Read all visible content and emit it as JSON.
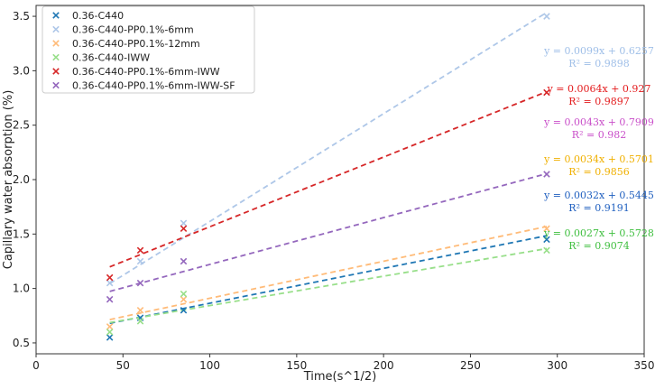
{
  "chart_data": {
    "type": "scatter",
    "title": "",
    "xlabel": "Time(s^1/2)",
    "ylabel": "Capillary water absorption (%)",
    "xlim": [
      0,
      350
    ],
    "ylim": [
      0.4,
      3.6
    ],
    "xticks": [
      0,
      50,
      100,
      150,
      200,
      250,
      300,
      350
    ],
    "yticks": [
      0.5,
      1.0,
      1.5,
      2.0,
      2.5,
      3.0,
      3.5
    ],
    "xtick_labels": [
      "0",
      "50",
      "100",
      "150",
      "200",
      "250",
      "300",
      "350"
    ],
    "ytick_labels": [
      "0.5",
      "1.0",
      "1.5",
      "2.0",
      "2.5",
      "3.0",
      "3.5"
    ],
    "grid": false,
    "legend_position": "top-left",
    "series": [
      {
        "name": "0.36-C440",
        "color": "#1f77b4",
        "x": [
          42.4,
          60.0,
          84.9,
          293.9
        ],
        "y": [
          0.55,
          0.73,
          0.8,
          1.45
        ],
        "trend": {
          "slope": 0.0032,
          "intercept": 0.5445,
          "x_range": [
            42.4,
            293.9
          ]
        },
        "equation": "y = 0.0032x + 0.5445",
        "r2": "R² = 0.9191",
        "eq_color": "#1f5fbf"
      },
      {
        "name": "0.36-C440-PP0.1%-6mm",
        "color": "#aec7e8",
        "x": [
          42.4,
          60.0,
          84.9,
          293.9
        ],
        "y": [
          1.05,
          1.25,
          1.6,
          3.5
        ],
        "trend": {
          "slope": 0.0099,
          "intercept": 0.6257,
          "x_range": [
            42.4,
            293.9
          ]
        },
        "equation": "y = 0.0099x + 0.6257",
        "r2": "R² = 0.9898",
        "eq_color": "#9fbfe8"
      },
      {
        "name": "0.36-C440-PP0.1%-12mm",
        "color": "#ffbb78",
        "x": [
          42.4,
          60.0,
          84.9,
          293.9
        ],
        "y": [
          0.65,
          0.8,
          0.9,
          1.55
        ],
        "trend": {
          "slope": 0.0034,
          "intercept": 0.5701,
          "x_range": [
            42.4,
            293.9
          ]
        },
        "equation": "y = 0.0034x + 0.5701",
        "r2": "R² = 0.9856",
        "eq_color": "#f0b000"
      },
      {
        "name": "0.36-C440-IWW",
        "color": "#98df8a",
        "x": [
          42.4,
          60.0,
          84.9,
          293.9
        ],
        "y": [
          0.6,
          0.7,
          0.95,
          1.35
        ],
        "trend": {
          "slope": 0.0027,
          "intercept": 0.5728,
          "x_range": [
            42.4,
            293.9
          ]
        },
        "equation": "y = 0.0027x + 0.5728",
        "r2": "R² = 0.9074",
        "eq_color": "#3fbf3f"
      },
      {
        "name": "0.36-C440-PP0.1%-6mm-IWW",
        "color": "#d62728",
        "x": [
          42.4,
          60.0,
          84.9,
          293.9
        ],
        "y": [
          1.1,
          1.35,
          1.55,
          2.8
        ],
        "trend": {
          "slope": 0.0064,
          "intercept": 0.927,
          "x_range": [
            42.4,
            293.9
          ]
        },
        "equation": "y = 0.0064x + 0.927",
        "r2": "R² = 0.9897",
        "eq_color": "#e31a1c"
      },
      {
        "name": "0.36-C440-PP0.1%-6mm-IWW-SF",
        "color": "#9467bd",
        "x": [
          42.4,
          60.0,
          84.9,
          293.9
        ],
        "y": [
          0.9,
          1.05,
          1.25,
          2.05
        ],
        "trend": {
          "slope": 0.0043,
          "intercept": 0.7909,
          "x_range": [
            42.4,
            293.9
          ]
        },
        "equation": "y = 0.0043x + 0.7909",
        "r2": "R² = 0.982",
        "eq_color": "#c94fc9"
      }
    ],
    "equation_order": [
      1,
      4,
      5,
      2,
      0,
      3
    ]
  }
}
